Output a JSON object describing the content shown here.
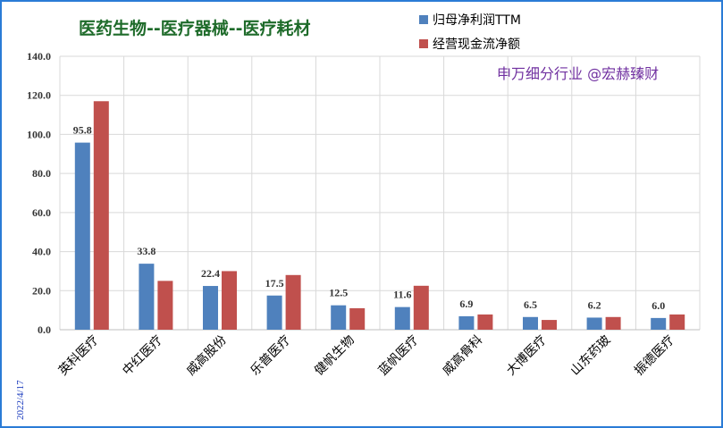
{
  "chart_data": {
    "type": "bar",
    "title": "医药生物--医疗器械--医疗耗材",
    "watermark": "申万细分行业 @宏赫臻财",
    "date_label": "2022/4/17",
    "categories": [
      "英科医疗",
      "中红医疗",
      "威高股份",
      "乐普医疗",
      "健帆生物",
      "蓝帆医疗",
      "威高骨科",
      "大博医疗",
      "山东药玻",
      "振德医疗"
    ],
    "series": [
      {
        "name": "归母净利润TTM",
        "color": "#4f81bd",
        "values": [
          95.8,
          33.8,
          22.4,
          17.5,
          12.5,
          11.6,
          6.9,
          6.5,
          6.2,
          6.0
        ],
        "labels": [
          "95.8",
          "33.8",
          "22.4",
          "17.5",
          "12.5",
          "11.6",
          "6.9",
          "6.5",
          "6.2",
          "6.0"
        ]
      },
      {
        "name": "经营现金流净额",
        "color": "#c0504d",
        "values": [
          117.0,
          25.0,
          30.0,
          28.0,
          11.0,
          22.5,
          7.8,
          5.0,
          6.5,
          7.8
        ]
      }
    ],
    "ylim": [
      0,
      140
    ],
    "yticks": [
      "0.0",
      "20.0",
      "40.0",
      "60.0",
      "80.0",
      "100.0",
      "120.0",
      "140.0"
    ],
    "grid": true,
    "legend_position": "top-right"
  }
}
